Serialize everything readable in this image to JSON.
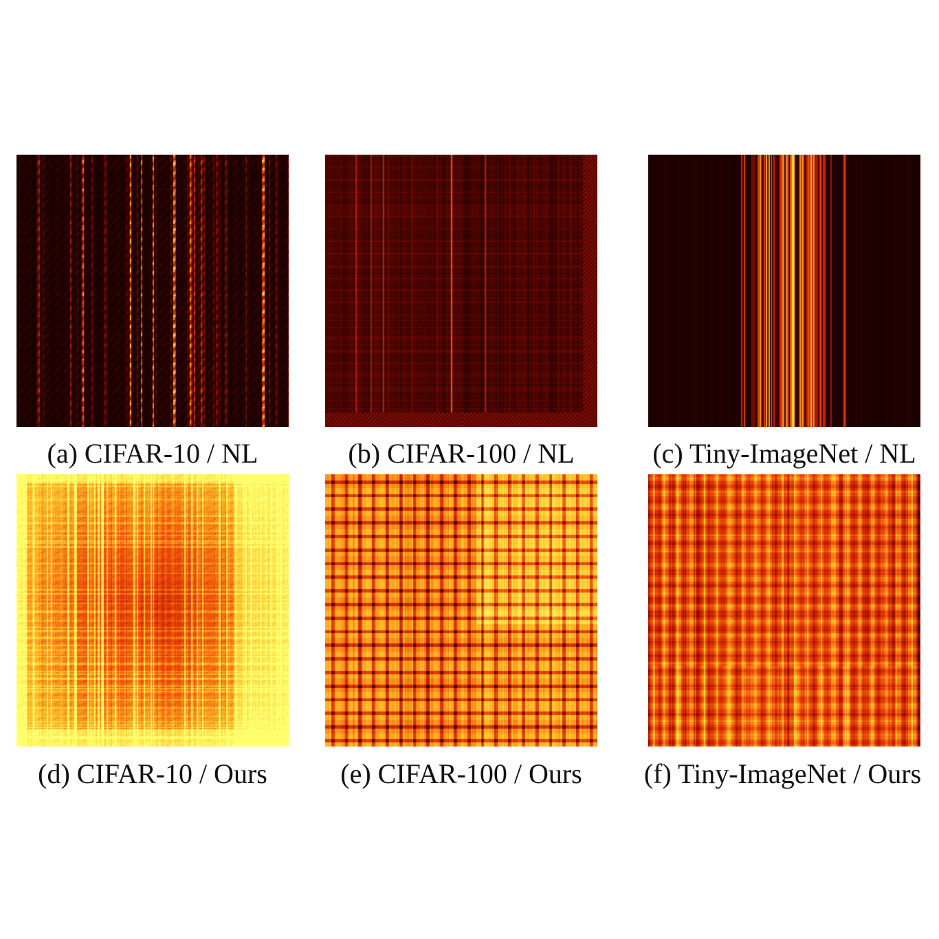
{
  "figure": {
    "colormap": "hot",
    "colormap_stops": [
      "#000000",
      "#b01500",
      "#ff6a00",
      "#ffff60"
    ],
    "panels": [
      {
        "caption": "(a) CIFAR-10 / NL",
        "dataset": "CIFAR-10",
        "method": "NL"
      },
      {
        "caption": "(b) CIFAR-100 / NL",
        "dataset": "CIFAR-100",
        "method": "NL"
      },
      {
        "caption": "(c) Tiny-ImageNet / NL",
        "dataset": "Tiny-ImageNet",
        "method": "NL"
      },
      {
        "caption": "(d) CIFAR-10 / Ours",
        "dataset": "CIFAR-10",
        "method": "Ours"
      },
      {
        "caption": "(e) CIFAR-100 / Ours",
        "dataset": "CIFAR-100",
        "method": "Ours"
      },
      {
        "caption": "(f) Tiny-ImageNet / Ours",
        "dataset": "Tiny-ImageNet",
        "method": "Ours"
      }
    ]
  },
  "chart_data": [
    {
      "type": "heatmap",
      "title": "(a) CIFAR-10 / NL",
      "xlabel": "",
      "ylabel": "",
      "value_range": [
        0,
        1
      ],
      "mean_intensity": 0.08,
      "pattern": "sparse bright vertical stripes"
    },
    {
      "type": "heatmap",
      "title": "(b) CIFAR-100 / NL",
      "xlabel": "",
      "ylabel": "",
      "value_range": [
        0,
        1
      ],
      "mean_intensity": 0.12,
      "pattern": "dim grid with sparse vertical stripes"
    },
    {
      "type": "heatmap",
      "title": "(c) Tiny-ImageNet / NL",
      "xlabel": "",
      "ylabel": "",
      "value_range": [
        0,
        1
      ],
      "mean_intensity": 0.07,
      "pattern": "bright vertical stripes concentrated near center"
    },
    {
      "type": "heatmap",
      "title": "(d) CIFAR-10 / Ours",
      "xlabel": "",
      "ylabel": "",
      "value_range": [
        0,
        1
      ],
      "mean_intensity": 0.8,
      "pattern": "dense vertical and horizontal stripes"
    },
    {
      "type": "heatmap",
      "title": "(e) CIFAR-100 / Ours",
      "xlabel": "",
      "ylabel": "",
      "value_range": [
        0,
        1
      ],
      "mean_intensity": 0.78,
      "pattern": "dense checkerboard grid"
    },
    {
      "type": "heatmap",
      "title": "(f) Tiny-ImageNet / Ours",
      "xlabel": "",
      "ylabel": "",
      "value_range": [
        0,
        1
      ],
      "mean_intensity": 0.65,
      "pattern": "dense fine grid"
    }
  ]
}
